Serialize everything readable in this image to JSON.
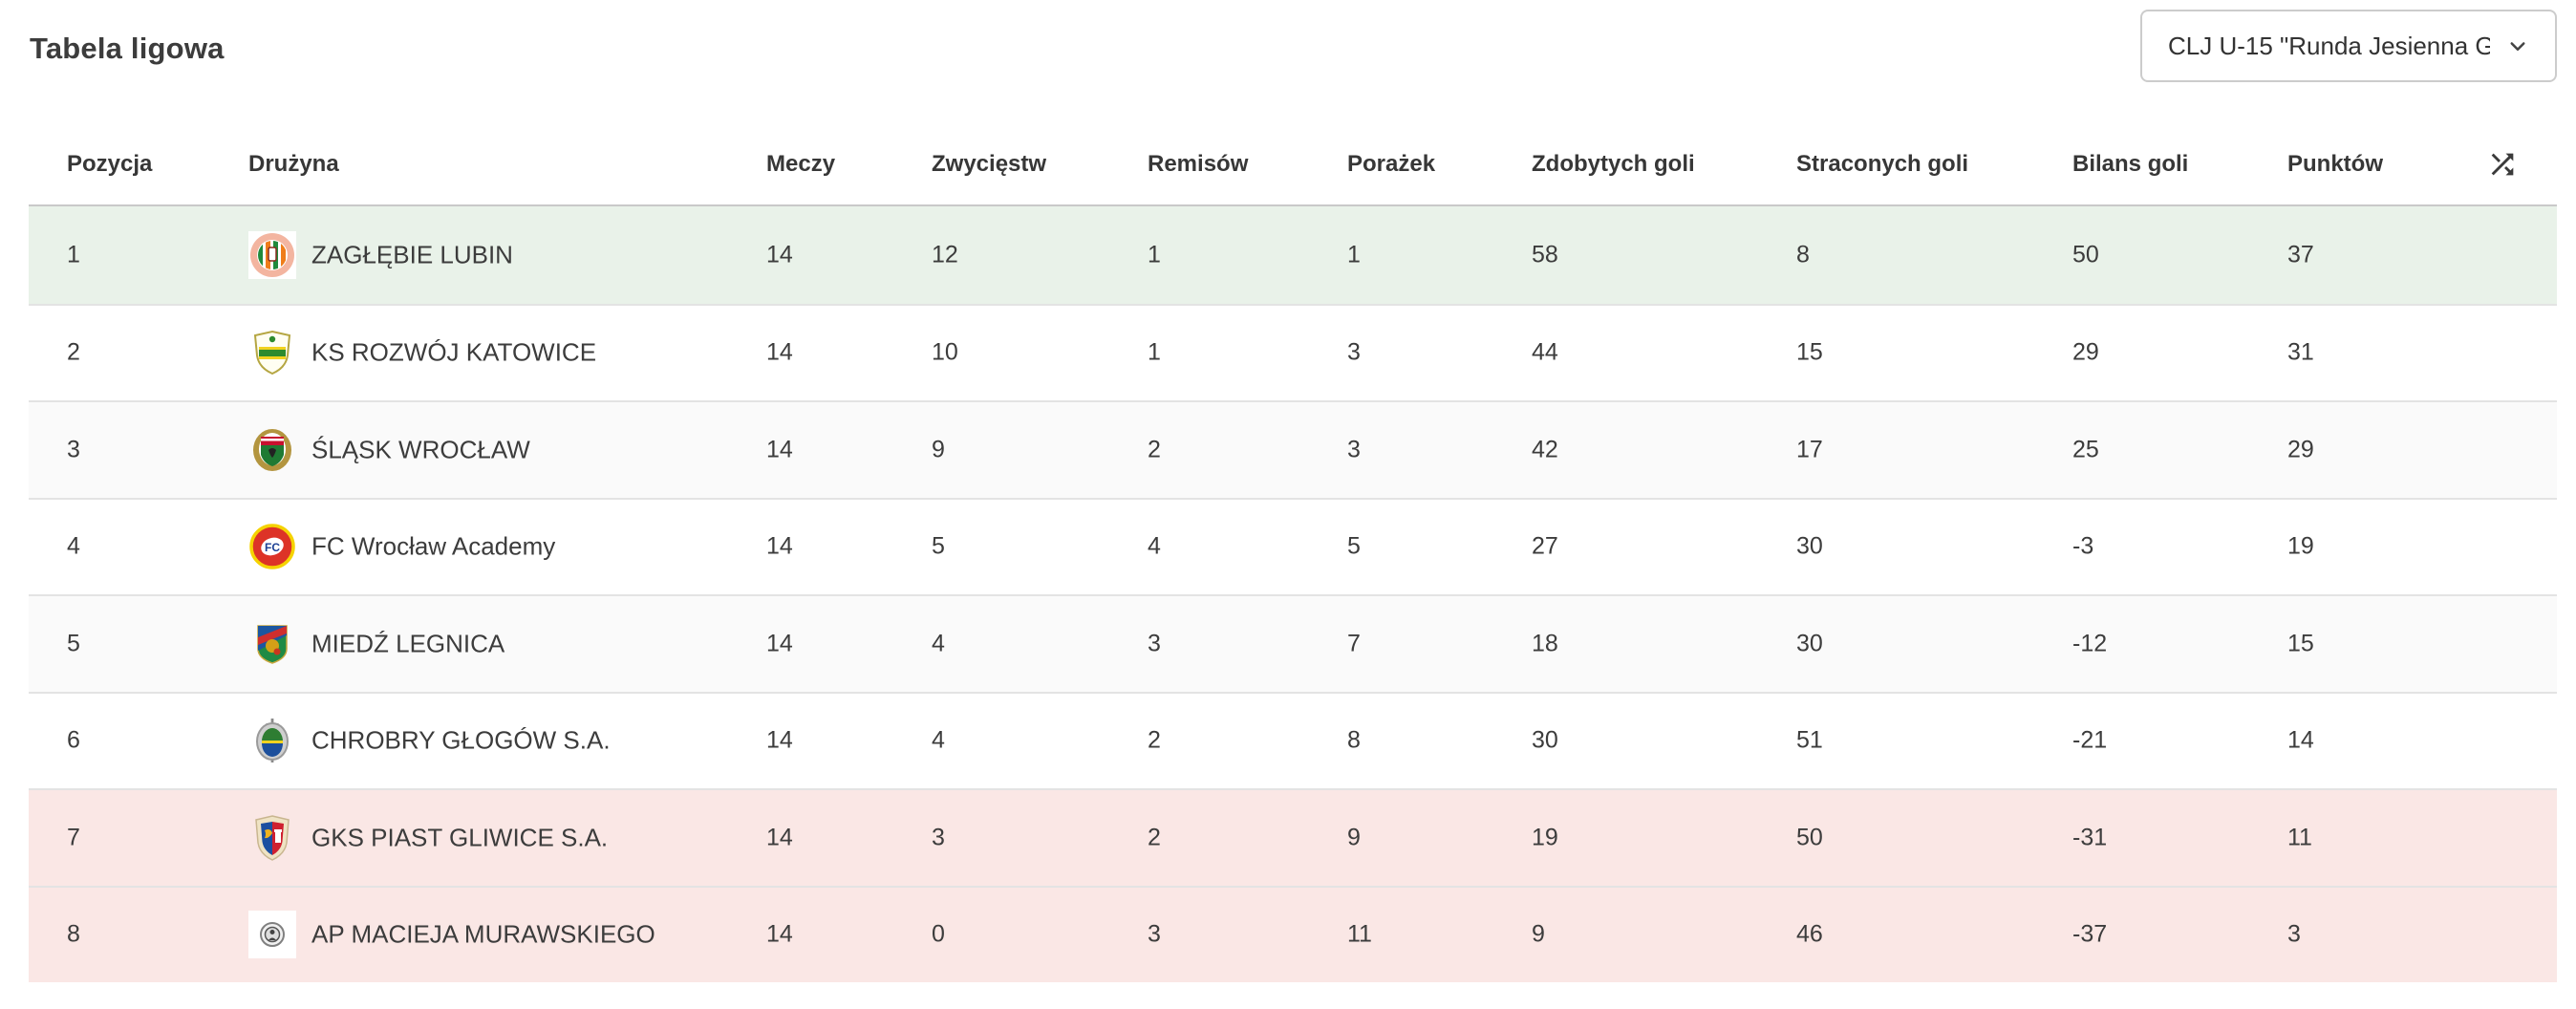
{
  "page": {
    "title": "Tabela ligowa"
  },
  "season_select": {
    "value": "CLJ U-15 \"Runda Jesienna G…",
    "icon": "chevron-down-icon"
  },
  "table": {
    "columns": [
      {
        "key": "position",
        "label": "Pozycja"
      },
      {
        "key": "team",
        "label": "Drużyna"
      },
      {
        "key": "matches",
        "label": "Meczy"
      },
      {
        "key": "wins",
        "label": "Zwycięstw"
      },
      {
        "key": "draws",
        "label": "Remisów"
      },
      {
        "key": "losses",
        "label": "Porażek"
      },
      {
        "key": "goals_for",
        "label": "Zdobytych goli"
      },
      {
        "key": "goals_against",
        "label": "Straconych goli"
      },
      {
        "key": "goal_balance",
        "label": "Bilans goli"
      },
      {
        "key": "points",
        "label": "Punktów"
      }
    ],
    "shuffle_icon": "shuffle-icon",
    "highlight_colors": {
      "promotion": "#e9f2e9",
      "relegation": "#fae7e5",
      "stripe": "#fafafa",
      "none": "#ffffff"
    },
    "rows": [
      {
        "position": "1",
        "team": "ZAGŁĘBIE LUBIN",
        "crest": "zaglebie-lubin",
        "matches": "14",
        "wins": "12",
        "draws": "1",
        "losses": "1",
        "goals_for": "58",
        "goals_against": "8",
        "goal_balance": "50",
        "points": "37",
        "highlight": "promotion"
      },
      {
        "position": "2",
        "team": "KS ROZWÓJ KATOWICE",
        "crest": "rozwoj-katowice",
        "matches": "14",
        "wins": "10",
        "draws": "1",
        "losses": "3",
        "goals_for": "44",
        "goals_against": "15",
        "goal_balance": "29",
        "points": "31",
        "highlight": "none"
      },
      {
        "position": "3",
        "team": "ŚLĄSK WROCŁAW",
        "crest": "slask-wroclaw",
        "matches": "14",
        "wins": "9",
        "draws": "2",
        "losses": "3",
        "goals_for": "42",
        "goals_against": "17",
        "goal_balance": "25",
        "points": "29",
        "highlight": "stripe"
      },
      {
        "position": "4",
        "team": "FC Wrocław Academy",
        "crest": "fc-wroclaw-academy",
        "matches": "14",
        "wins": "5",
        "draws": "4",
        "losses": "5",
        "goals_for": "27",
        "goals_against": "30",
        "goal_balance": "-3",
        "points": "19",
        "highlight": "none"
      },
      {
        "position": "5",
        "team": "MIEDŹ LEGNICA",
        "crest": "miedz-legnica",
        "matches": "14",
        "wins": "4",
        "draws": "3",
        "losses": "7",
        "goals_for": "18",
        "goals_against": "30",
        "goal_balance": "-12",
        "points": "15",
        "highlight": "stripe"
      },
      {
        "position": "6",
        "team": "CHROBRY GŁOGÓW S.A.",
        "crest": "chrobry-glogow",
        "matches": "14",
        "wins": "4",
        "draws": "2",
        "losses": "8",
        "goals_for": "30",
        "goals_against": "51",
        "goal_balance": "-21",
        "points": "14",
        "highlight": "none"
      },
      {
        "position": "7",
        "team": "GKS PIAST GLIWICE S.A.",
        "crest": "piast-gliwice",
        "matches": "14",
        "wins": "3",
        "draws": "2",
        "losses": "9",
        "goals_for": "19",
        "goals_against": "50",
        "goal_balance": "-31",
        "points": "11",
        "highlight": "relegation"
      },
      {
        "position": "8",
        "team": "AP MACIEJA MURAWSKIEGO",
        "crest": "ap-murawskiego",
        "matches": "14",
        "wins": "0",
        "draws": "3",
        "losses": "11",
        "goals_for": "9",
        "goals_against": "46",
        "goal_balance": "-37",
        "points": "3",
        "highlight": "relegation"
      }
    ]
  }
}
